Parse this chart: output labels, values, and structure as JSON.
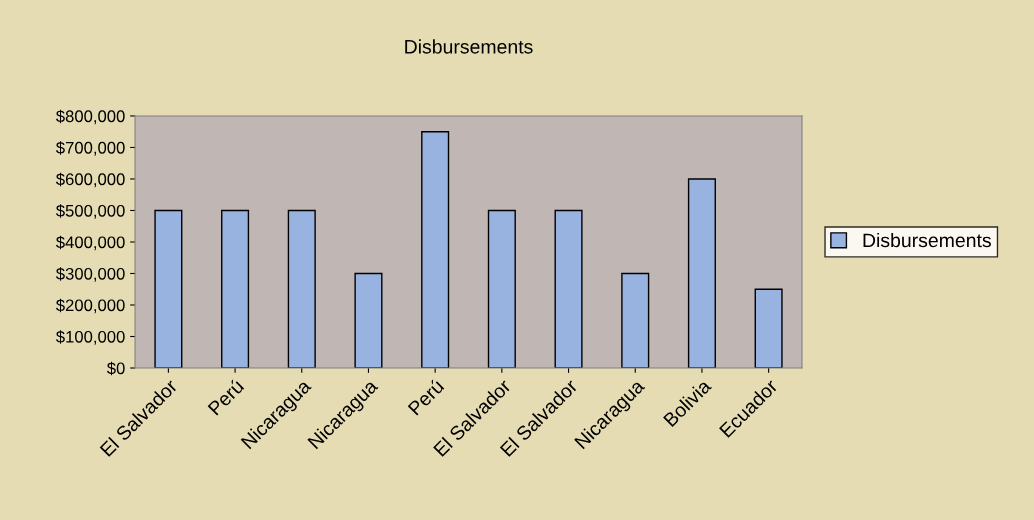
{
  "chart_data": {
    "type": "bar",
    "title": "Disbursements",
    "categories": [
      "El Salvador",
      "Perú",
      "Nicaragua",
      "Nicaragua",
      "Perú",
      "El Salvador",
      "El Salvador",
      "Nicaragua",
      "Bolivia",
      "Ecuador"
    ],
    "series": [
      {
        "name": "Disbursements",
        "color": "#99b3e0",
        "values": [
          500000,
          500000,
          500000,
          300000,
          750000,
          500000,
          500000,
          300000,
          600000,
          250000
        ]
      }
    ],
    "ylim": [
      0,
      800000
    ],
    "yticks": [
      {
        "value": 0,
        "label": "$0"
      },
      {
        "value": 100000,
        "label": "$100,000"
      },
      {
        "value": 200000,
        "label": "$200,000"
      },
      {
        "value": 300000,
        "label": "$300,000"
      },
      {
        "value": 400000,
        "label": "$400,000"
      },
      {
        "value": 500000,
        "label": "$500,000"
      },
      {
        "value": 600000,
        "label": "$600,000"
      },
      {
        "value": 700000,
        "label": "$700,000"
      },
      {
        "value": 800000,
        "label": "$800,000"
      }
    ],
    "grid": false,
    "legend": "right"
  }
}
